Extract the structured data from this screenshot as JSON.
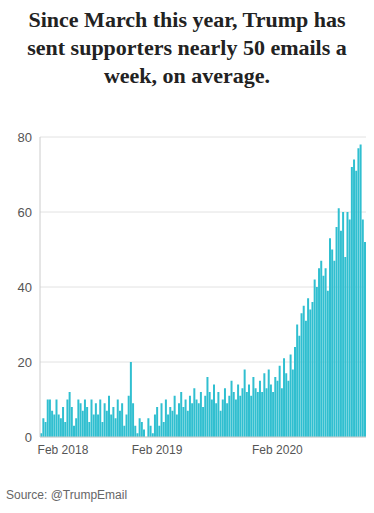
{
  "chart_data": {
    "type": "bar",
    "title": "Since March this year, Trump has sent supporters nearly 50 emails a week, on average.",
    "source": "Source: @TrumpEmail",
    "categories": [
      null,
      null,
      null,
      null,
      null,
      null,
      null,
      null,
      null,
      null,
      "Feb 2018",
      null,
      null,
      null,
      null,
      null,
      null,
      null,
      null,
      null,
      null,
      null,
      null,
      null,
      null,
      null,
      null,
      null,
      null,
      null,
      null,
      null,
      null,
      null,
      null,
      null,
      null,
      null,
      null,
      null,
      null,
      null,
      null,
      null,
      null,
      null,
      null,
      null,
      null,
      null,
      null,
      null,
      null,
      "Feb 2019",
      null,
      null,
      null,
      null,
      null,
      null,
      null,
      null,
      null,
      null,
      null,
      null,
      null,
      null,
      null,
      null,
      null,
      null,
      null,
      null,
      null,
      null,
      null,
      null,
      null,
      null,
      null,
      null,
      null,
      null,
      null,
      null,
      null,
      null,
      null,
      null,
      null,
      null,
      null,
      null,
      null,
      null,
      null,
      null,
      null,
      null,
      null,
      null,
      null,
      null,
      null,
      null,
      null,
      null,
      "Feb 2020",
      null,
      null,
      null,
      null,
      null,
      null,
      null,
      null,
      null,
      null,
      null,
      null,
      null,
      null,
      null,
      null,
      null,
      null,
      null,
      null,
      null,
      null,
      null,
      null,
      null,
      null,
      null,
      null,
      null,
      null,
      null,
      null,
      null,
      null,
      null,
      null,
      null,
      null,
      null,
      null
    ],
    "values": [
      1,
      5,
      4,
      10,
      10,
      7,
      6,
      10,
      6,
      5,
      8,
      4,
      10,
      12,
      8,
      3,
      5,
      10,
      9,
      7,
      10,
      8,
      4,
      10,
      6,
      9,
      6,
      10,
      4,
      9,
      7,
      11,
      6,
      8,
      5,
      10,
      7,
      9,
      3,
      6,
      11,
      20,
      9,
      3,
      1,
      5,
      4,
      2,
      0,
      5,
      3,
      1,
      6,
      8,
      3,
      9,
      4,
      10,
      6,
      8,
      7,
      11,
      6,
      9,
      12,
      8,
      10,
      7,
      11,
      9,
      13,
      10,
      9,
      12,
      8,
      11,
      16,
      12,
      10,
      14,
      9,
      12,
      7,
      10,
      13,
      9,
      11,
      15,
      12,
      10,
      14,
      11,
      13,
      18,
      12,
      14,
      11,
      16,
      13,
      12,
      15,
      12,
      17,
      13,
      18,
      14,
      12,
      16,
      15,
      19,
      13,
      21,
      17,
      15,
      22,
      18,
      24,
      30,
      27,
      33,
      35,
      31,
      37,
      34,
      36,
      42,
      40,
      45,
      47,
      43,
      45,
      39,
      53,
      50,
      47,
      56,
      61,
      55,
      60,
      48,
      60,
      58,
      72,
      74,
      71,
      77,
      78,
      58,
      52
    ],
    "color": "#30bfd0",
    "ylim": [
      0,
      80
    ],
    "yticks": [
      0,
      20,
      40,
      60,
      80
    ],
    "grid": true
  }
}
